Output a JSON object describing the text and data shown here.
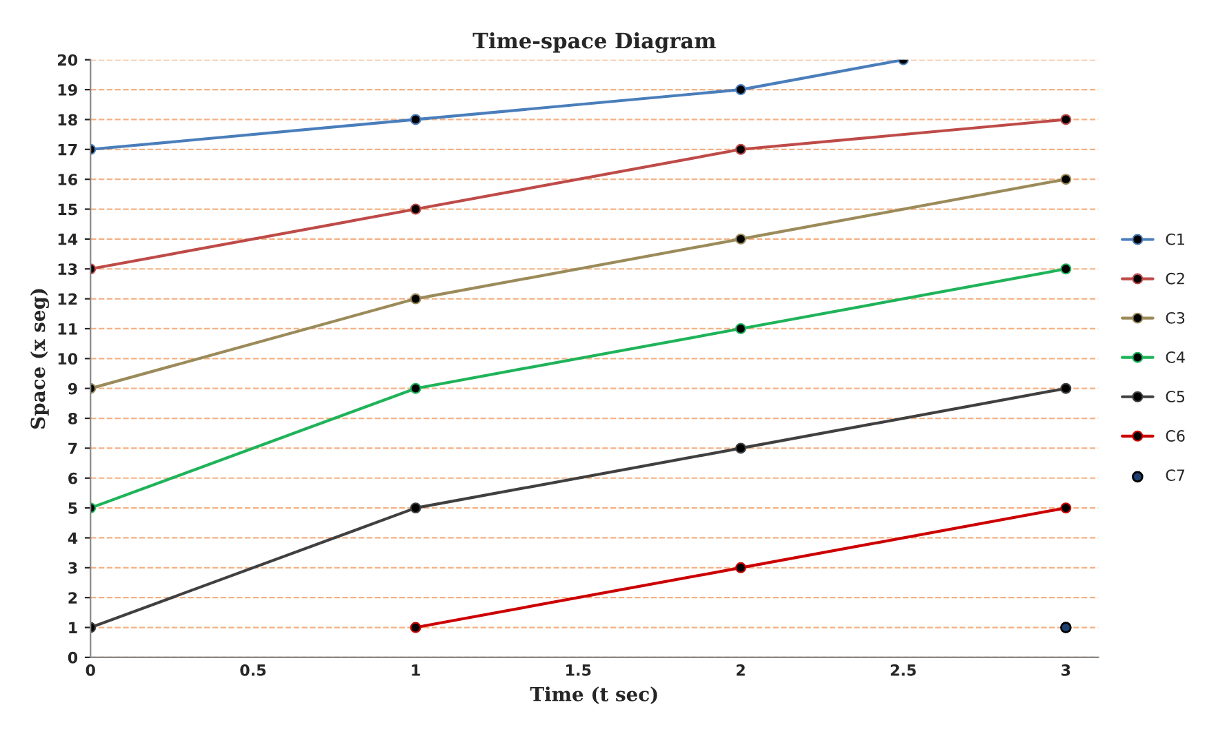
{
  "chart_data": {
    "type": "line",
    "title": "Time-space Diagram",
    "xlabel": "Time (t sec)",
    "ylabel": "Space (x seg)",
    "xlim": [
      0,
      3.1
    ],
    "xticks": [
      0,
      0.5,
      1,
      1.5,
      2,
      2.5,
      3
    ],
    "ylim": [
      0,
      20
    ],
    "yticks": [
      0,
      1,
      2,
      3,
      4,
      5,
      6,
      7,
      8,
      9,
      10,
      11,
      12,
      13,
      14,
      15,
      16,
      17,
      18,
      19,
      20
    ],
    "grid": "y",
    "legend": "right",
    "marker": "circle",
    "series": [
      {
        "name": "C1",
        "color": "#4a7ebb",
        "x": [
          0,
          1,
          2,
          2.5
        ],
        "values": [
          17,
          18,
          19,
          20
        ]
      },
      {
        "name": "C2",
        "color": "#be4b48",
        "x": [
          0,
          1,
          2,
          3
        ],
        "values": [
          13,
          15,
          17,
          18
        ]
      },
      {
        "name": "C3",
        "color": "#9b8b5a",
        "x": [
          0,
          1,
          2,
          3
        ],
        "values": [
          9,
          12,
          14,
          16
        ]
      },
      {
        "name": "C4",
        "color": "#1fb35a",
        "x": [
          0,
          1,
          2,
          3
        ],
        "values": [
          5,
          9,
          11,
          13
        ]
      },
      {
        "name": "C5",
        "color": "#404040",
        "x": [
          0,
          1,
          2,
          3
        ],
        "values": [
          1,
          5,
          7,
          9
        ]
      },
      {
        "name": "C6",
        "color": "#cc0000",
        "x": [
          1,
          2,
          3
        ],
        "values": [
          1,
          3,
          5
        ]
      },
      {
        "name": "C7",
        "type": "scatter",
        "color": "#1f3f6f",
        "x": [
          3
        ],
        "values": [
          1
        ]
      }
    ]
  }
}
